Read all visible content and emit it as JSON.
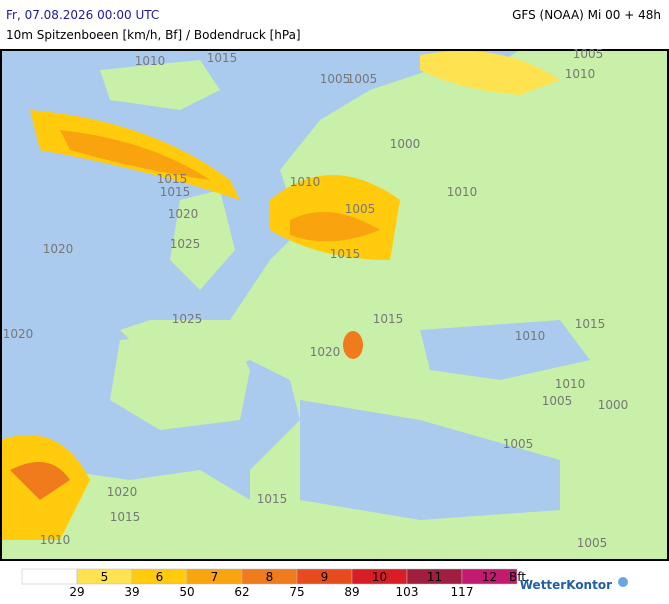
{
  "header": {
    "valid_time": "Fr, 07.08.2026 00:00 UTC",
    "model_run": "GFS (NOAA) Mi 00 + 48h",
    "subtitle": "10m Spitzenboeen [km/h, Bf] / Bodendruck [hPa]"
  },
  "isobar_labels": [
    "1010",
    "1015",
    "1005",
    "1005",
    "1000",
    "1010",
    "1010",
    "1005",
    "1015",
    "1015",
    "1020",
    "1020",
    "1025",
    "1015",
    "1025",
    "1020",
    "1015",
    "1020",
    "1015",
    "1010",
    "1010",
    "1005",
    "1000",
    "1005",
    "1015",
    "1020",
    "1015",
    "1010",
    "1005",
    "1010",
    "1005"
  ],
  "legend": {
    "colors": [
      "#ffffff",
      "#ffe24f",
      "#ffcb0c",
      "#f9a30e",
      "#f07b1c",
      "#e84b1e",
      "#d81e24",
      "#a01e3f",
      "#c21a6e"
    ],
    "bft": [
      5,
      6,
      7,
      8,
      9,
      10,
      11,
      12
    ],
    "bft_unit": "Bft.",
    "kmh": [
      29,
      39,
      50,
      62,
      75,
      89,
      103,
      117
    ]
  },
  "logo": "WetterKontor"
}
